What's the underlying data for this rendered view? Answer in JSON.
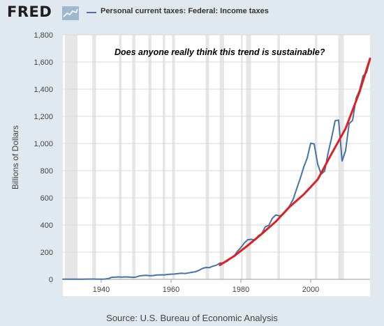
{
  "header": {
    "logo_text": "FRED",
    "logo_icon": "chart-graph-icon",
    "legend_label": "Personal current taxes: Federal: Income taxes",
    "series_color": "#4572a7"
  },
  "footer": {
    "source": "Source: U.S. Bureau of Economic Analysis"
  },
  "chart_data": {
    "type": "line",
    "title": "",
    "annotation": "Does anyone really think this trend is sustainable?",
    "xlabel": "",
    "ylabel": "Billions of Dollars",
    "xlim": [
      1929,
      2017
    ],
    "ylim": [
      0,
      1800
    ],
    "yticks": [
      0,
      200,
      400,
      600,
      800,
      1000,
      1200,
      1400,
      1600,
      1800
    ],
    "ytick_labels": [
      "0",
      "200",
      "400",
      "600",
      "800",
      "1,000",
      "1,200",
      "1,400",
      "1,600",
      "1,800"
    ],
    "xticks": [
      1940,
      1960,
      1980,
      2000
    ],
    "xtick_labels": [
      "1940",
      "1960",
      "1980",
      "2000"
    ],
    "grid": "horizontal",
    "recessions": [
      [
        1929.6,
        1933.2
      ],
      [
        1937.4,
        1938.5
      ],
      [
        1945.1,
        1945.8
      ],
      [
        1948.9,
        1949.8
      ],
      [
        1953.5,
        1954.4
      ],
      [
        1957.6,
        1958.3
      ],
      [
        1960.3,
        1961.1
      ],
      [
        1969.9,
        1970.9
      ],
      [
        1973.9,
        1975.2
      ],
      [
        1980.0,
        1980.5
      ],
      [
        1981.5,
        1982.9
      ],
      [
        1990.5,
        1991.2
      ],
      [
        2001.2,
        2001.9
      ],
      [
        2007.9,
        2009.5
      ]
    ],
    "series": [
      {
        "name": "Personal current taxes: Federal: Income taxes",
        "color": "#4572a7",
        "x": [
          1929,
          1930,
          1931,
          1932,
          1933,
          1934,
          1935,
          1936,
          1937,
          1938,
          1939,
          1940,
          1941,
          1942,
          1943,
          1944,
          1945,
          1946,
          1947,
          1948,
          1949,
          1950,
          1951,
          1952,
          1953,
          1954,
          1955,
          1956,
          1957,
          1958,
          1959,
          1960,
          1961,
          1962,
          1963,
          1964,
          1965,
          1966,
          1967,
          1968,
          1969,
          1970,
          1971,
          1972,
          1973,
          1974,
          1975,
          1976,
          1977,
          1978,
          1979,
          1980,
          1981,
          1982,
          1983,
          1984,
          1985,
          1986,
          1987,
          1988,
          1989,
          1990,
          1991,
          1992,
          1993,
          1994,
          1995,
          1996,
          1997,
          1998,
          1999,
          2000,
          2001,
          2002,
          2003,
          2004,
          2005,
          2006,
          2007,
          2008,
          2009,
          2010,
          2011,
          2012,
          2013,
          2014,
          2015,
          2016,
          2017
        ],
        "values": [
          1,
          1,
          1,
          1,
          1,
          1,
          1,
          2,
          2,
          2,
          1,
          1,
          2,
          5,
          15,
          16,
          18,
          16,
          18,
          17,
          15,
          17,
          25,
          28,
          29,
          26,
          28,
          32,
          33,
          33,
          36,
          38,
          39,
          42,
          45,
          43,
          47,
          52,
          56,
          66,
          80,
          87,
          86,
          97,
          104,
          120,
          122,
          132,
          155,
          170,
          206,
          234,
          268,
          292,
          295,
          288,
          320,
          337,
          387,
          397,
          448,
          474,
          467,
          476,
          505,
          543,
          590,
          668,
          742,
          826,
          893,
          1002,
          997,
          849,
          774,
          797,
          932,
          1043,
          1167,
          1173,
          872,
          947,
          1146,
          1170,
          1332,
          1394,
          1497,
          1523,
          1615
        ]
      },
      {
        "name": "",
        "color": "#e02020",
        "x": [
          1974,
          1978,
          1982,
          1986,
          1990,
          1994,
          1998,
          2002,
          2006,
          2010,
          2014,
          2017
        ],
        "values": [
          105,
          170,
          250,
          335,
          425,
          535,
          625,
          735,
          925,
          1110,
          1380,
          1625
        ]
      }
    ]
  }
}
